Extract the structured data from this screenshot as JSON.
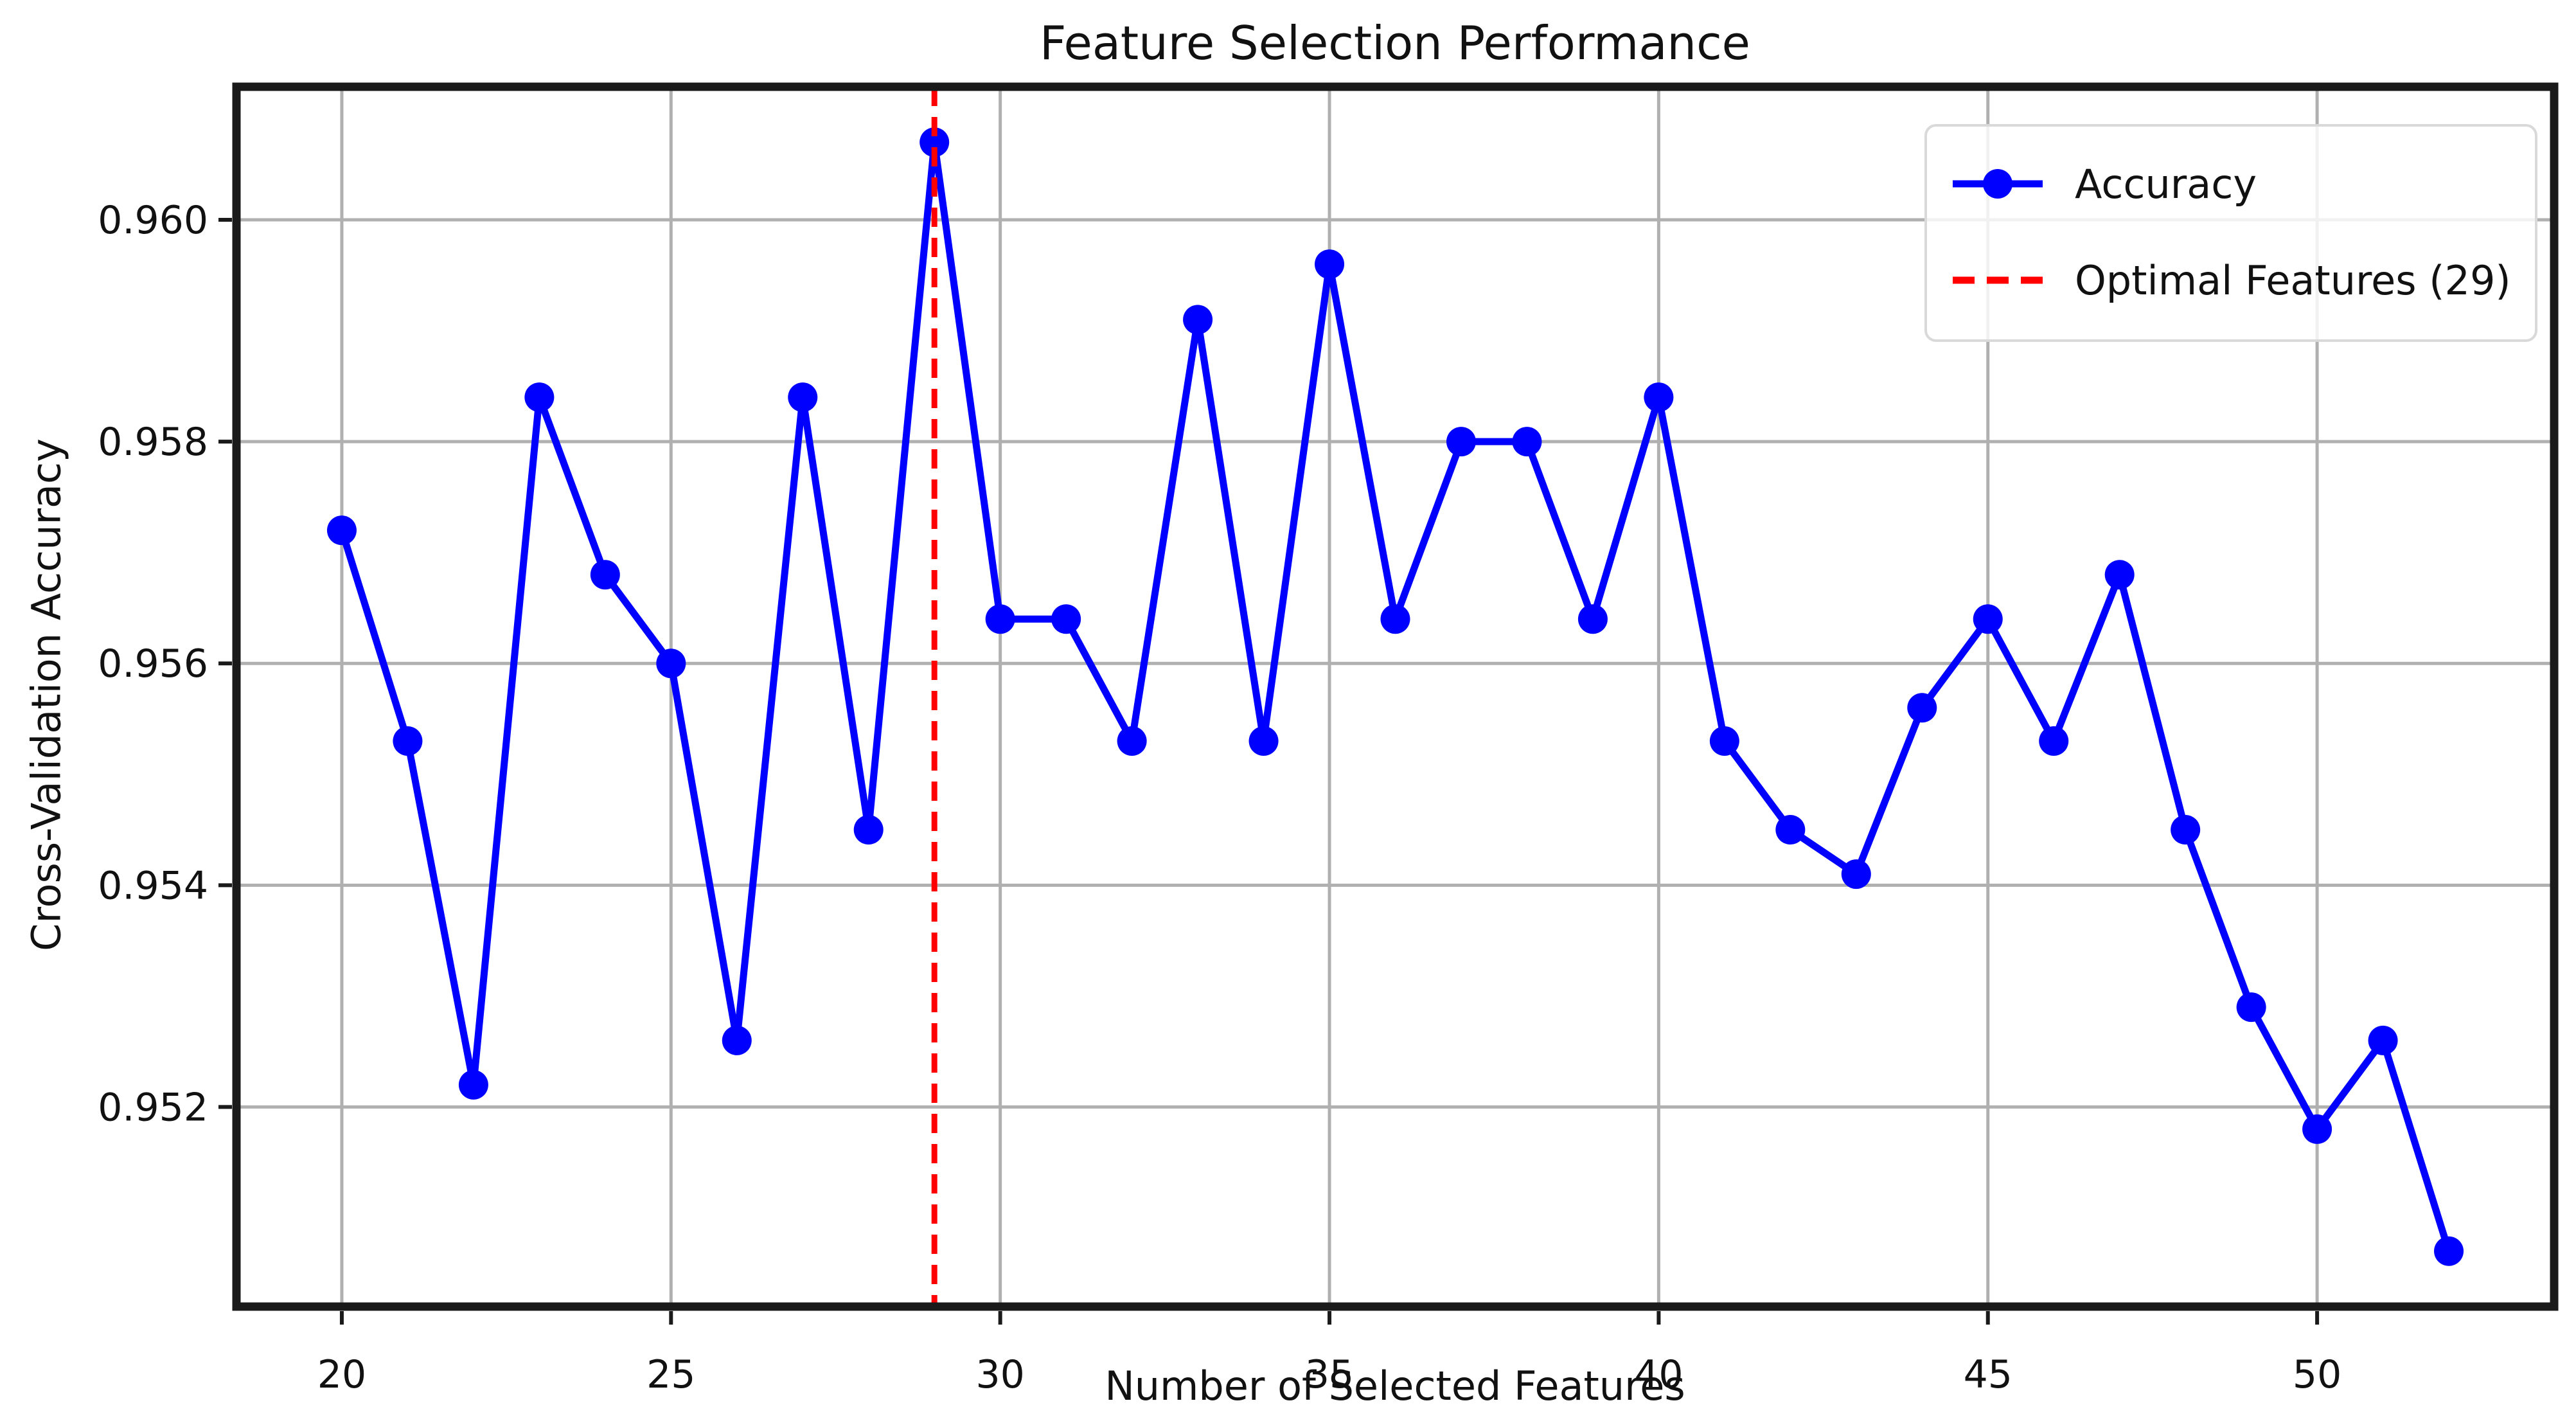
{
  "chart_data": {
    "type": "line",
    "title": "Feature Selection Performance",
    "xlabel": "Number of Selected Features",
    "ylabel": "Cross-Validation Accuracy",
    "x": [
      20,
      21,
      22,
      23,
      24,
      25,
      26,
      27,
      28,
      29,
      30,
      31,
      32,
      33,
      34,
      35,
      36,
      37,
      38,
      39,
      40,
      41,
      42,
      43,
      44,
      45,
      46,
      47,
      48,
      49,
      50,
      51,
      52
    ],
    "series": [
      {
        "name": "Accuracy",
        "color": "#0000ff",
        "marker": "circle",
        "values": [
          0.9572,
          0.9553,
          0.9522,
          0.9584,
          0.9568,
          0.956,
          0.9526,
          0.9584,
          0.9545,
          0.9607,
          0.9564,
          0.9564,
          0.9553,
          0.9591,
          0.9553,
          0.9596,
          0.9564,
          0.958,
          0.958,
          0.9564,
          0.9584,
          0.9553,
          0.9545,
          0.9541,
          0.9556,
          0.9564,
          0.9553,
          0.9568,
          0.9545,
          0.9529,
          0.9518,
          0.9526,
          0.9507
        ]
      }
    ],
    "vline": {
      "label": "Optimal Features (29)",
      "x": 29,
      "color": "#ff0000",
      "style": "dashed"
    },
    "xticks": [
      20,
      25,
      30,
      35,
      40,
      45,
      50
    ],
    "xtick_labels": [
      "20",
      "25",
      "30",
      "35",
      "40",
      "45",
      "50"
    ],
    "yticks": [
      0.952,
      0.954,
      0.956,
      0.958,
      0.96
    ],
    "ytick_labels": [
      "0.952",
      "0.954",
      "0.956",
      "0.958",
      "0.960"
    ],
    "xlim": [
      18.4,
      53.6
    ],
    "ylim": [
      0.9502,
      0.9612
    ],
    "grid": true,
    "grid_color": "#b0b0b0",
    "spine_color": "#1a1a1a",
    "legend_position": "upper right"
  }
}
